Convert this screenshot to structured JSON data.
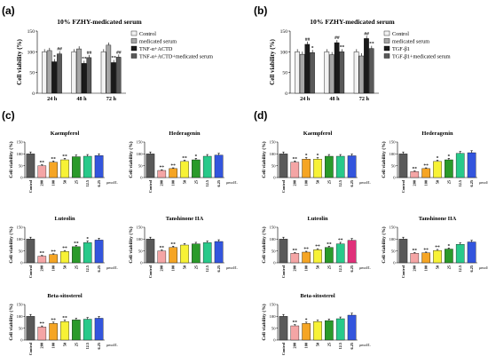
{
  "panel_letters": {
    "a": "(a)",
    "b": "(b)",
    "c": "(c)",
    "d": "(d)"
  },
  "colors": {
    "control": "#f2f2f2",
    "medicated": "#a6a6a6",
    "injury": "#1a1a1a",
    "injury_plus_serum": "#595959",
    "dose_control": "#595959",
    "dose_200": "#f4a5a5",
    "dose_100": "#f5a524",
    "dose_50": "#f7f236",
    "dose_25": "#2a9a2a",
    "dose_12_5": "#28c98a",
    "dose_6_25": "#3355dd",
    "dose_6_25_luteolin_d": "#e0307a"
  },
  "chart_data": [
    {
      "id": "a",
      "type": "bar",
      "title": "10% FZHY-medicated serum",
      "ylabel": "Cell viability (%)",
      "categories": [
        "24 h",
        "48 h",
        "72 h"
      ],
      "ylim": [
        0,
        150
      ],
      "yticks": [
        0,
        50,
        100,
        150
      ],
      "series": [
        {
          "name": "Control",
          "values": [
            100,
            100,
            100
          ]
        },
        {
          "name": "medicated serum",
          "values": [
            103,
            107,
            116
          ]
        },
        {
          "name": "TNF-α+ACTD",
          "values": [
            76,
            72,
            74
          ]
        },
        {
          "name": "TNF-α+ACTD+medicated serum",
          "values": [
            95,
            86,
            87
          ]
        }
      ],
      "annotations": [
        "*",
        "##",
        "**",
        "##",
        "**",
        "##",
        "**"
      ]
    },
    {
      "id": "b",
      "type": "bar",
      "title": "10% FZHY-medicated serum",
      "ylabel": "Cell viability (%)",
      "categories": [
        "24 h",
        "48 h",
        "72 h"
      ],
      "ylim": [
        0,
        150
      ],
      "yticks": [
        0,
        50,
        100,
        150
      ],
      "series": [
        {
          "name": "Control",
          "values": [
            100,
            100,
            100
          ]
        },
        {
          "name": "medicated serum",
          "values": [
            94,
            93,
            90
          ]
        },
        {
          "name": "TGF-β1",
          "values": [
            118,
            122,
            132
          ]
        },
        {
          "name": "TGF-β1+medicated serum",
          "values": [
            98,
            100,
            108
          ]
        }
      ],
      "annotations": [
        "##",
        "*",
        "##",
        "**",
        "##",
        "**"
      ]
    },
    {
      "id": "c1",
      "type": "bar",
      "title": "Kaempferol",
      "ylabel": "Cell viability (%)",
      "unit": "μmol/L",
      "categories": [
        "Control",
        "200",
        "100",
        "50",
        "25",
        "12.5",
        "6.25"
      ],
      "values": [
        100,
        50,
        65,
        75,
        88,
        90,
        93
      ],
      "ylim": [
        0,
        150
      ],
      "yticks": [
        0,
        50,
        100,
        150
      ],
      "annotations": [
        "",
        "**",
        "**",
        "**",
        "",
        "",
        ""
      ]
    },
    {
      "id": "c2",
      "type": "bar",
      "title": "Hederagenin",
      "ylabel": "Cell viability (%)",
      "unit": "μmol/L",
      "categories": [
        "Control",
        "200",
        "100",
        "50",
        "25",
        "12.5",
        "6.25"
      ],
      "values": [
        100,
        30,
        38,
        68,
        75,
        90,
        95
      ],
      "ylim": [
        0,
        150
      ],
      "yticks": [
        0,
        50,
        100,
        150
      ],
      "annotations": [
        "",
        "**",
        "**",
        "**",
        "*",
        "",
        ""
      ]
    },
    {
      "id": "c3",
      "type": "bar",
      "title": "Luteolin",
      "ylabel": "Cell viability (%)",
      "unit": "μmol/L",
      "categories": [
        "Control",
        "200",
        "100",
        "50",
        "25",
        "12.5",
        "6.25"
      ],
      "values": [
        100,
        28,
        35,
        48,
        68,
        85,
        96
      ],
      "ylim": [
        0,
        150
      ],
      "yticks": [
        0,
        50,
        100,
        150
      ],
      "annotations": [
        "",
        "**",
        "**",
        "**",
        "**",
        "*",
        ""
      ]
    },
    {
      "id": "c4",
      "type": "bar",
      "title": "Tanshinone IIA",
      "ylabel": "Cell viability (%)",
      "unit": "μmol/L",
      "categories": [
        "Control",
        "200",
        "100",
        "50",
        "25",
        "12.5",
        "6.25"
      ],
      "values": [
        100,
        50,
        65,
        75,
        80,
        85,
        90
      ],
      "ylim": [
        0,
        150
      ],
      "yticks": [
        0,
        50,
        100,
        150
      ],
      "annotations": [
        "",
        "**",
        "**",
        "",
        "",
        "",
        ""
      ]
    },
    {
      "id": "c5",
      "type": "bar",
      "title": "Beta-sitosterol",
      "ylabel": "Cell viability (%)",
      "unit": "μmol/L",
      "categories": [
        "Control",
        "200",
        "100",
        "50",
        "25",
        "12.5",
        "6.25"
      ],
      "values": [
        100,
        55,
        70,
        78,
        85,
        88,
        92
      ],
      "ylim": [
        0,
        150
      ],
      "yticks": [
        0,
        50,
        100,
        150
      ],
      "annotations": [
        "",
        "**",
        "**",
        "**",
        "",
        "",
        ""
      ]
    },
    {
      "id": "d1",
      "type": "bar",
      "title": "Kaempferol",
      "ylabel": "Cell viability (%)",
      "unit": "μmol/L",
      "categories": [
        "Control",
        "200",
        "100",
        "50",
        "25",
        "12.5",
        "6.25"
      ],
      "values": [
        100,
        65,
        78,
        78,
        90,
        90,
        92
      ],
      "ylim": [
        0,
        150
      ],
      "yticks": [
        0,
        50,
        100,
        150
      ],
      "annotations": [
        "",
        "**",
        "*",
        "*",
        "",
        "",
        ""
      ]
    },
    {
      "id": "d2",
      "type": "bar",
      "title": "Hederagenin",
      "ylabel": "Cell viability (%)",
      "unit": "μmol/L",
      "categories": [
        "Control",
        "200",
        "100",
        "50",
        "25",
        "12.5",
        "6.25"
      ],
      "values": [
        100,
        25,
        38,
        68,
        75,
        102,
        105
      ],
      "ylim": [
        0,
        150
      ],
      "yticks": [
        0,
        50,
        100,
        150
      ],
      "annotations": [
        "",
        "**",
        "**",
        "*",
        "*",
        "",
        ""
      ]
    },
    {
      "id": "d3",
      "type": "bar",
      "title": "Luteolin",
      "ylabel": "Cell viability (%)",
      "unit": "μmol/L",
      "categories": [
        "Control",
        "200",
        "100",
        "50",
        "25",
        "12.5",
        "6.25"
      ],
      "values": [
        100,
        40,
        45,
        55,
        65,
        80,
        95
      ],
      "ylim": [
        0,
        150
      ],
      "yticks": [
        0,
        50,
        100,
        150
      ],
      "annotations": [
        "",
        "**",
        "**",
        "**",
        "**",
        "**",
        ""
      ]
    },
    {
      "id": "d4",
      "type": "bar",
      "title": "Tanshinone IIA",
      "ylabel": "Cell viability (%)",
      "unit": "μmol/L",
      "categories": [
        "Control",
        "200",
        "100",
        "50",
        "25",
        "12.5",
        "6.25"
      ],
      "values": [
        100,
        40,
        42,
        52,
        58,
        78,
        88
      ],
      "ylim": [
        0,
        150
      ],
      "yticks": [
        0,
        50,
        100,
        150
      ],
      "annotations": [
        "",
        "**",
        "**",
        "**",
        "*",
        "",
        ""
      ]
    },
    {
      "id": "d5",
      "type": "bar",
      "title": "Beta-sitosterol",
      "ylabel": "Cell viability (%)",
      "unit": "μmol/L",
      "categories": [
        "Control",
        "200",
        "100",
        "50",
        "25",
        "12.5",
        "6.25"
      ],
      "values": [
        100,
        60,
        70,
        78,
        82,
        90,
        105
      ],
      "ylim": [
        0,
        150
      ],
      "yticks": [
        0,
        50,
        100,
        150
      ],
      "annotations": [
        "",
        "**",
        "*",
        "",
        "",
        "",
        ""
      ]
    }
  ]
}
